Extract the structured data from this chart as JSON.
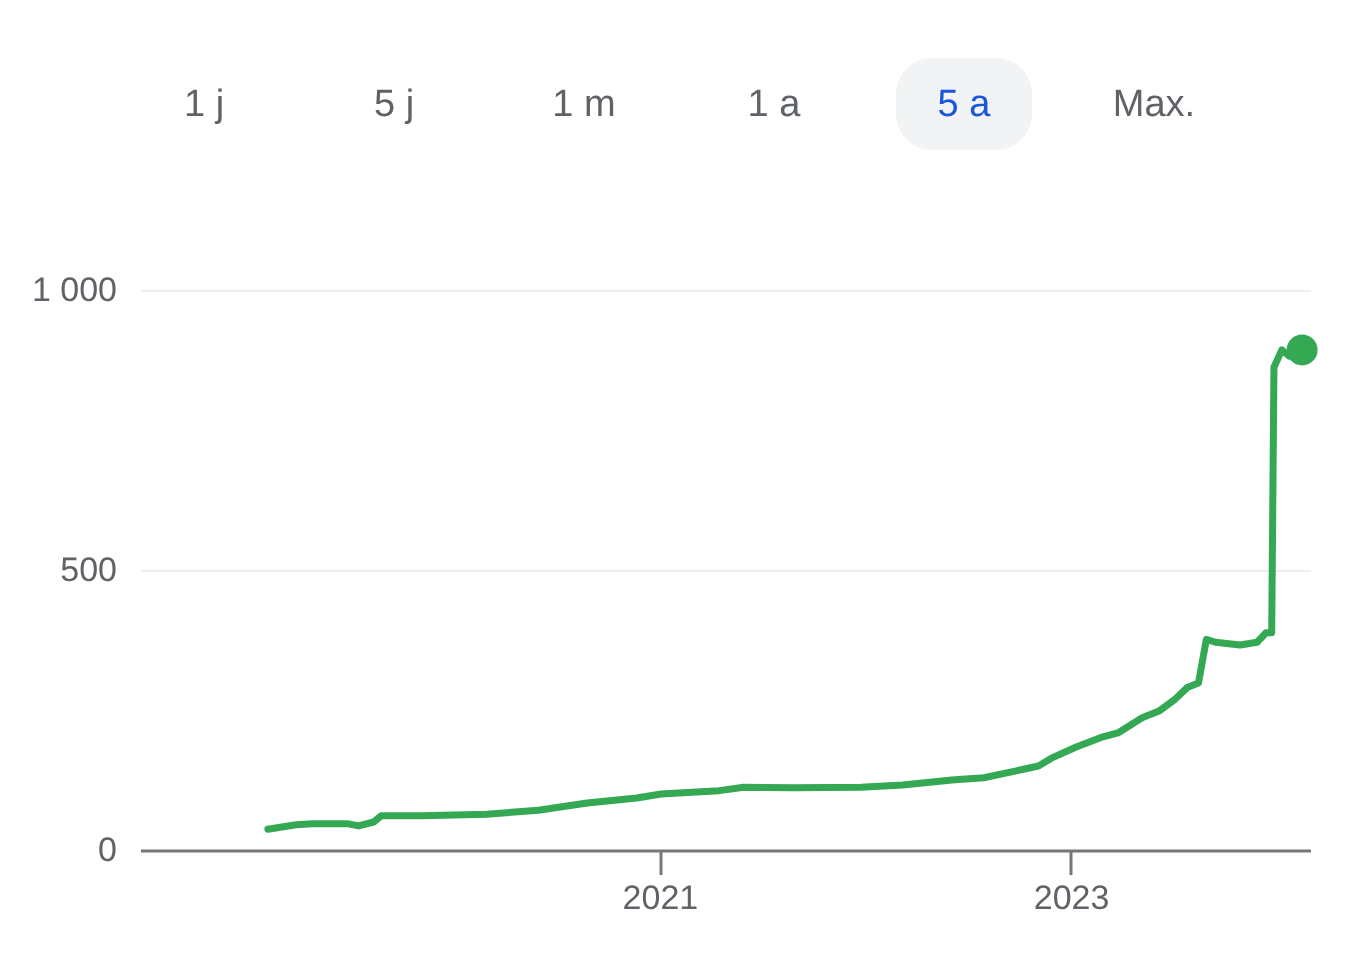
{
  "chart_data": {
    "type": "line",
    "annotations": [
      "1 j",
      "5 j",
      "1 m",
      "1 a",
      "5 a",
      "Max."
    ],
    "series": [
      {
        "type": "line",
        "color": "#34a853",
        "x": [
          "2019-02-06",
          "2019-03-28",
          "2019-04-27",
          "2019-06-27",
          "2019-07-17",
          "2019-08-13",
          "2019-08-26",
          "2019-11-04",
          "2020-03-01",
          "2020-05-31",
          "2020-08-26",
          "2020-11-22",
          "2021-01-04",
          "2021-04-17",
          "2021-05-31",
          "2021-08-30",
          "2021-12-25",
          "2022-03-09",
          "2022-06-04",
          "2022-07-31",
          "2022-09-16",
          "2022-11-05",
          "2022-11-28",
          "2023-01-11",
          "2023-02-24",
          "2023-03-26",
          "2023-05-08",
          "2023-06-07",
          "2023-07-04",
          "2023-07-27",
          "2023-08-16",
          "2023-08-30",
          "2023-09-15",
          "2023-10-29",
          "2023-11-28",
          "2023-12-14",
          "2023-12-24",
          "2023-12-28",
          "2024-01-11",
          "2024-01-24",
          "2024-02-16"
        ],
        "values": [
          37,
          45,
          47,
          47,
          43,
          50,
          61,
          61,
          64,
          71,
          84,
          93,
          100,
          106,
          112,
          111,
          112,
          116,
          125,
          129,
          139,
          150,
          164,
          184,
          201,
          209,
          236,
          248,
          268,
          290,
          298,
          376,
          371,
          366,
          371,
          388,
          388,
          862,
          893,
          882,
          893
        ]
      },
      {
        "type": "scatter",
        "color": "#34a853",
        "marker": "circle",
        "x": [
          "2024-02-16"
        ],
        "values": [
          893
        ]
      }
    ],
    "xlim": [
      "2018-06-24",
      "2024-03-01"
    ],
    "xticks": [
      {
        "value": "2021",
        "label": "2021"
      },
      {
        "value": "2023",
        "label": "2023"
      }
    ],
    "ylim": [
      0,
      1000
    ],
    "yticks": [
      0,
      500,
      {
        "value": 1000,
        "label": "1 000"
      }
    ],
    "grid": "y",
    "line_style": "solid"
  }
}
